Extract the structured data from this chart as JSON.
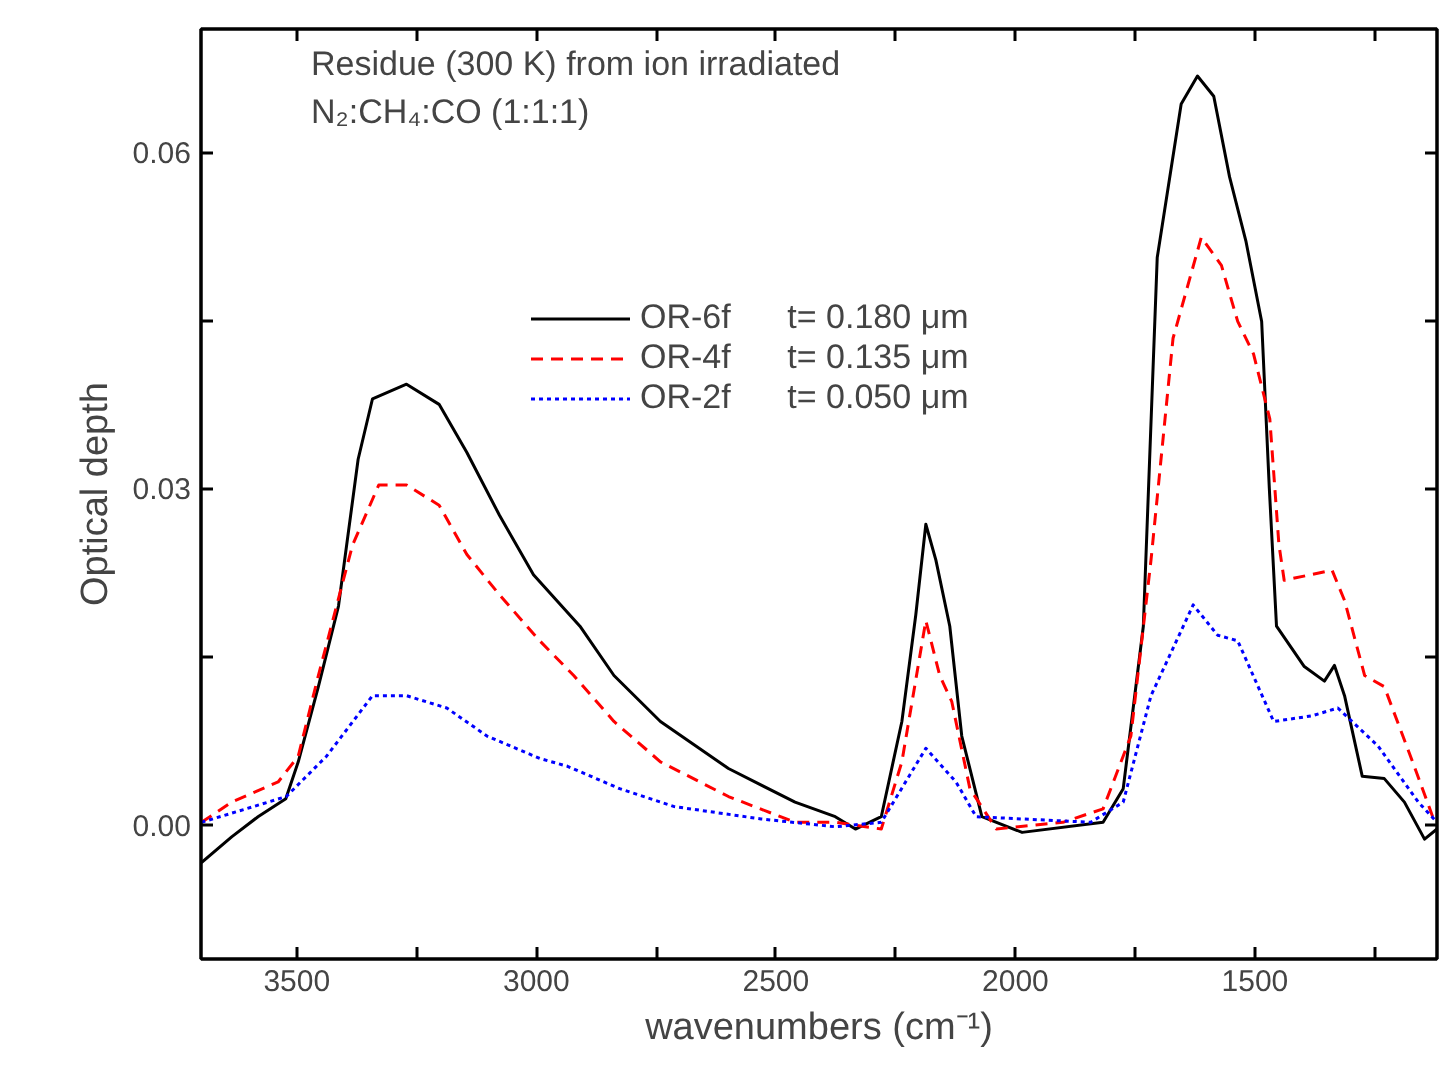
{
  "chart_data": {
    "type": "line",
    "annotations": [
      "Residue (300 K) from ion irradiated",
      "N₂:CH₄:CO (1:1:1)"
    ],
    "xlabel": "wavenumbers (cm⁻¹)",
    "ylabel": "Optical depth",
    "xlim": [
      3700,
      1120
    ],
    "ylim": [
      -0.012,
      0.071
    ],
    "xticks": [
      3500,
      {
        "value": 3250,
        "label": null
      },
      3000,
      {
        "value": 2750,
        "label": null
      },
      2500,
      {
        "value": 2250,
        "label": null
      },
      2000,
      {
        "value": 1750,
        "label": null
      },
      1500,
      {
        "value": 1250,
        "label": null
      }
    ],
    "yticks": [
      {
        "value": 0,
        "label": "0.00"
      },
      {
        "value": 0.015,
        "label": null
      },
      {
        "value": 0.03,
        "label": "0.03"
      },
      {
        "value": 0.045,
        "label": null
      },
      {
        "value": 0.06,
        "label": "0.06"
      }
    ],
    "grid": false,
    "legend": "top",
    "series": [
      {
        "name": "OR-6f      t= 0.180 μm",
        "color": "#000000",
        "line_style": "solid",
        "x": [
          3699,
          3636,
          3581,
          3523,
          3497,
          3455,
          3413,
          3372,
          3342,
          3271,
          3203,
          3145,
          3077,
          3006,
          2909,
          2838,
          2741,
          2599,
          2460,
          2376,
          2334,
          2280,
          2237,
          2208,
          2187,
          2166,
          2137,
          2112,
          2070,
          1986,
          1817,
          1775,
          1733,
          1704,
          1654,
          1620,
          1586,
          1553,
          1519,
          1486,
          1470,
          1455,
          1397,
          1355,
          1334,
          1313,
          1276,
          1230,
          1188,
          1146,
          1120
        ],
        "values": [
          -0.0034,
          -0.0011,
          0.0007,
          0.0023,
          0.0056,
          0.0123,
          0.0195,
          0.0326,
          0.038,
          0.0393,
          0.0375,
          0.0332,
          0.0276,
          0.0223,
          0.0177,
          0.0133,
          0.0092,
          0.005,
          0.002,
          0.0007,
          -0.0004,
          0.0007,
          0.0092,
          0.0187,
          0.0268,
          0.0236,
          0.0177,
          0.0079,
          0.0007,
          -0.0007,
          0.0002,
          0.0032,
          0.0177,
          0.0506,
          0.0643,
          0.0668,
          0.065,
          0.0578,
          0.0521,
          0.0449,
          0.03,
          0.0177,
          0.0141,
          0.0128,
          0.0142,
          0.0115,
          0.0043,
          0.0041,
          0.002,
          -0.0013,
          -0.0004
        ]
      },
      {
        "name": "OR-4f      t= 0.135 μm",
        "color": "#ff0000",
        "line_style": "dashed",
        "x": [
          3699,
          3636,
          3539,
          3497,
          3455,
          3384,
          3329,
          3271,
          3203,
          3145,
          3077,
          2993,
          2922,
          2838,
          2741,
          2599,
          2460,
          2376,
          2280,
          2237,
          2187,
          2158,
          2133,
          2095,
          2040,
          1901,
          1817,
          1759,
          1717,
          1671,
          1612,
          1570,
          1536,
          1503,
          1469,
          1450,
          1439,
          1339,
          1313,
          1271,
          1230,
          1171,
          1129
        ],
        "values": [
          0.0002,
          0.002,
          0.0038,
          0.0061,
          0.0133,
          0.0249,
          0.0303,
          0.0303,
          0.0285,
          0.0241,
          0.0205,
          0.0164,
          0.0133,
          0.0092,
          0.0056,
          0.0025,
          0.0002,
          0.0002,
          -0.0004,
          0.0056,
          0.0182,
          0.0133,
          0.011,
          0.0032,
          -0.0004,
          0.0002,
          0.0014,
          0.0079,
          0.0236,
          0.0434,
          0.0524,
          0.0499,
          0.0449,
          0.042,
          0.0362,
          0.025,
          0.0218,
          0.0227,
          0.02,
          0.0133,
          0.0123,
          0.0056,
          0.0007
        ]
      },
      {
        "name": "OR-2f      t= 0.050 μm",
        "color": "#0000ff",
        "line_style": "dotted",
        "x": [
          3699,
          3606,
          3522,
          3438,
          3342,
          3271,
          3187,
          3103,
          2993,
          2935,
          2826,
          2712,
          2531,
          2376,
          2280,
          2187,
          2124,
          2082,
          1843,
          1775,
          1717,
          1629,
          1578,
          1536,
          1461,
          1381,
          1327,
          1243,
          1159,
          1120
        ],
        "values": [
          0.0002,
          0.0014,
          0.0025,
          0.0061,
          0.0115,
          0.0115,
          0.0104,
          0.0079,
          0.0059,
          0.0052,
          0.0032,
          0.0016,
          0.0005,
          -0.0002,
          0.0002,
          0.0068,
          0.0038,
          0.0007,
          0.0002,
          0.002,
          0.0115,
          0.0196,
          0.0169,
          0.0164,
          0.0092,
          0.0097,
          0.0104,
          0.007,
          0.002,
          0.0002
        ]
      }
    ]
  }
}
